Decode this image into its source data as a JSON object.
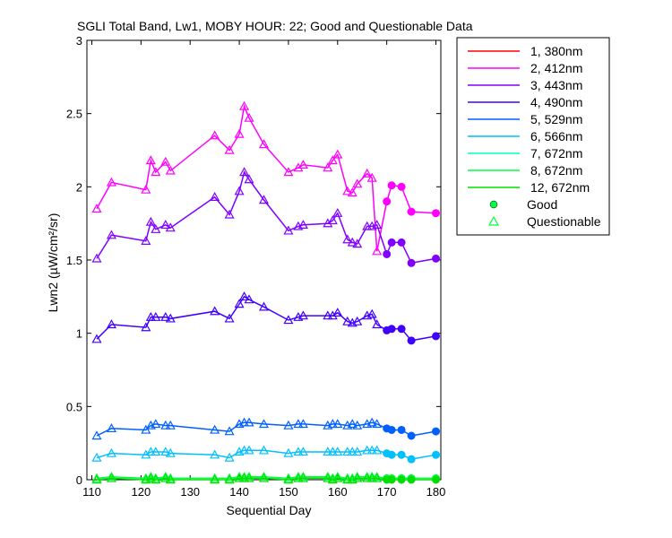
{
  "chart_data": {
    "type": "line",
    "title": "SGLI Total Band, Lw1, MOBY HOUR: 22;  Good and Questionable Data",
    "xlabel": "Sequential Day",
    "ylabel": "Lwn2 (µW/cm²/sr)",
    "xlim": [
      109,
      181
    ],
    "ylim": [
      0,
      3
    ],
    "xticks": [
      110,
      120,
      130,
      140,
      150,
      160,
      170,
      180
    ],
    "yticks": [
      0,
      0.5,
      1,
      1.5,
      2,
      2.5,
      3
    ],
    "grid": false,
    "legend_position": "outside-right-top",
    "x": [
      111,
      114,
      121,
      122,
      123,
      125,
      126,
      135,
      138,
      140,
      141,
      142,
      145,
      150,
      152,
      153,
      158,
      159,
      160,
      162,
      163,
      164,
      166,
      167,
      168,
      170,
      171,
      173,
      175,
      180
    ],
    "good_from_index": 25,
    "series": [
      {
        "name": "1, 380nm",
        "color": "#ff0000",
        "values": [
          null,
          null,
          null,
          null,
          null,
          null,
          null,
          null,
          null,
          null,
          null,
          null,
          null,
          null,
          null,
          null,
          null,
          null,
          null,
          null,
          null,
          null,
          null,
          null,
          null,
          null,
          null,
          null,
          null,
          null
        ]
      },
      {
        "name": "2, 412nm",
        "color": "#ff00ff",
        "values": [
          1.85,
          2.03,
          1.98,
          2.18,
          2.1,
          2.17,
          2.11,
          2.35,
          2.25,
          2.36,
          2.55,
          2.47,
          2.29,
          2.1,
          2.13,
          2.15,
          2.13,
          2.18,
          2.22,
          1.97,
          1.96,
          2.02,
          2.09,
          2.06,
          1.56,
          1.9,
          2.01,
          2.0,
          1.83,
          1.82
        ]
      },
      {
        "name": "3, 443nm",
        "color": "#8000ff",
        "values": [
          1.51,
          1.67,
          1.63,
          1.76,
          1.71,
          1.74,
          1.72,
          1.93,
          1.81,
          1.97,
          2.1,
          2.05,
          1.91,
          1.7,
          1.73,
          1.74,
          1.75,
          1.77,
          1.82,
          1.64,
          1.62,
          1.61,
          1.73,
          1.73,
          1.74,
          1.54,
          1.62,
          1.62,
          1.48,
          1.51
        ]
      },
      {
        "name": "4, 490nm",
        "color": "#4000ff",
        "values": [
          0.96,
          1.06,
          1.04,
          1.11,
          1.11,
          1.11,
          1.1,
          1.15,
          1.1,
          1.2,
          1.25,
          1.23,
          1.18,
          1.09,
          1.11,
          1.12,
          1.12,
          1.12,
          1.14,
          1.08,
          1.07,
          1.08,
          1.12,
          1.13,
          1.06,
          1.02,
          1.03,
          1.03,
          0.95,
          0.98
        ]
      },
      {
        "name": "5, 529nm",
        "color": "#0060ff",
        "values": [
          0.3,
          0.35,
          0.34,
          0.37,
          0.38,
          0.37,
          0.37,
          0.34,
          0.33,
          0.38,
          0.39,
          0.39,
          0.38,
          0.37,
          0.38,
          0.38,
          0.37,
          0.38,
          0.38,
          0.37,
          0.38,
          0.37,
          0.38,
          0.39,
          0.38,
          0.35,
          0.34,
          0.34,
          0.3,
          0.33
        ]
      },
      {
        "name": "6, 566nm",
        "color": "#00c0ff",
        "values": [
          0.15,
          0.18,
          0.17,
          0.19,
          0.19,
          0.19,
          0.18,
          0.17,
          0.15,
          0.19,
          0.2,
          0.2,
          0.2,
          0.18,
          0.19,
          0.19,
          0.19,
          0.19,
          0.19,
          0.19,
          0.19,
          0.19,
          0.2,
          0.2,
          0.2,
          0.18,
          0.17,
          0.17,
          0.14,
          0.17
        ]
      },
      {
        "name": "7, 672nm",
        "color": "#00ffc0",
        "values": [
          null,
          null,
          null,
          null,
          null,
          null,
          null,
          null,
          null,
          null,
          null,
          null,
          null,
          null,
          null,
          null,
          null,
          null,
          null,
          null,
          null,
          null,
          null,
          null,
          null,
          null,
          null,
          null,
          null,
          null
        ]
      },
      {
        "name": "8, 672nm",
        "color": "#00ff40",
        "values": [
          0.01,
          0.02,
          0.01,
          0.02,
          0.01,
          0.02,
          0.01,
          0.01,
          0.01,
          0.02,
          0.02,
          0.02,
          0.02,
          0.01,
          0.02,
          0.02,
          0.02,
          0.01,
          0.02,
          0.01,
          0.01,
          0.02,
          0.02,
          0.02,
          0.02,
          0.01,
          0.01,
          0.01,
          0.01,
          0.01
        ]
      },
      {
        "name": "12, 672nm",
        "color": "#00e000",
        "values": [
          0.0,
          0.01,
          0.0,
          0.01,
          0.0,
          0.01,
          0.0,
          0.0,
          0.0,
          0.01,
          0.01,
          0.01,
          0.01,
          0.0,
          0.01,
          0.01,
          0.01,
          0.0,
          0.01,
          0.0,
          0.0,
          0.01,
          0.01,
          0.01,
          0.01,
          0.0,
          0.0,
          0.0,
          0.0,
          0.0
        ]
      }
    ],
    "legend_markers": [
      {
        "label": "Good",
        "marker": "circle",
        "color": "#00ff40"
      },
      {
        "label": "Questionable",
        "marker": "triangle",
        "color": "#00ff40"
      }
    ]
  }
}
